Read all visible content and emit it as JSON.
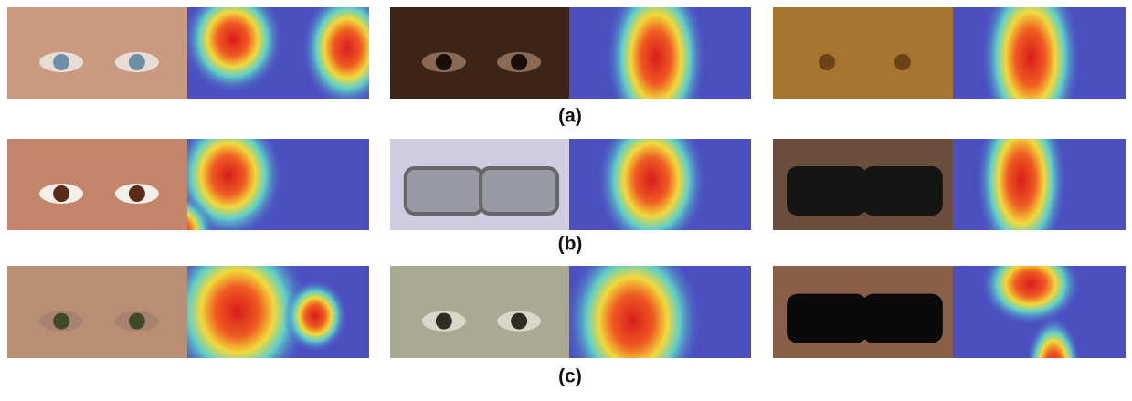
{
  "figure": {
    "rows": [
      {
        "label": "(a)"
      },
      {
        "label": "(b)"
      },
      {
        "label": "(c)"
      }
    ]
  }
}
